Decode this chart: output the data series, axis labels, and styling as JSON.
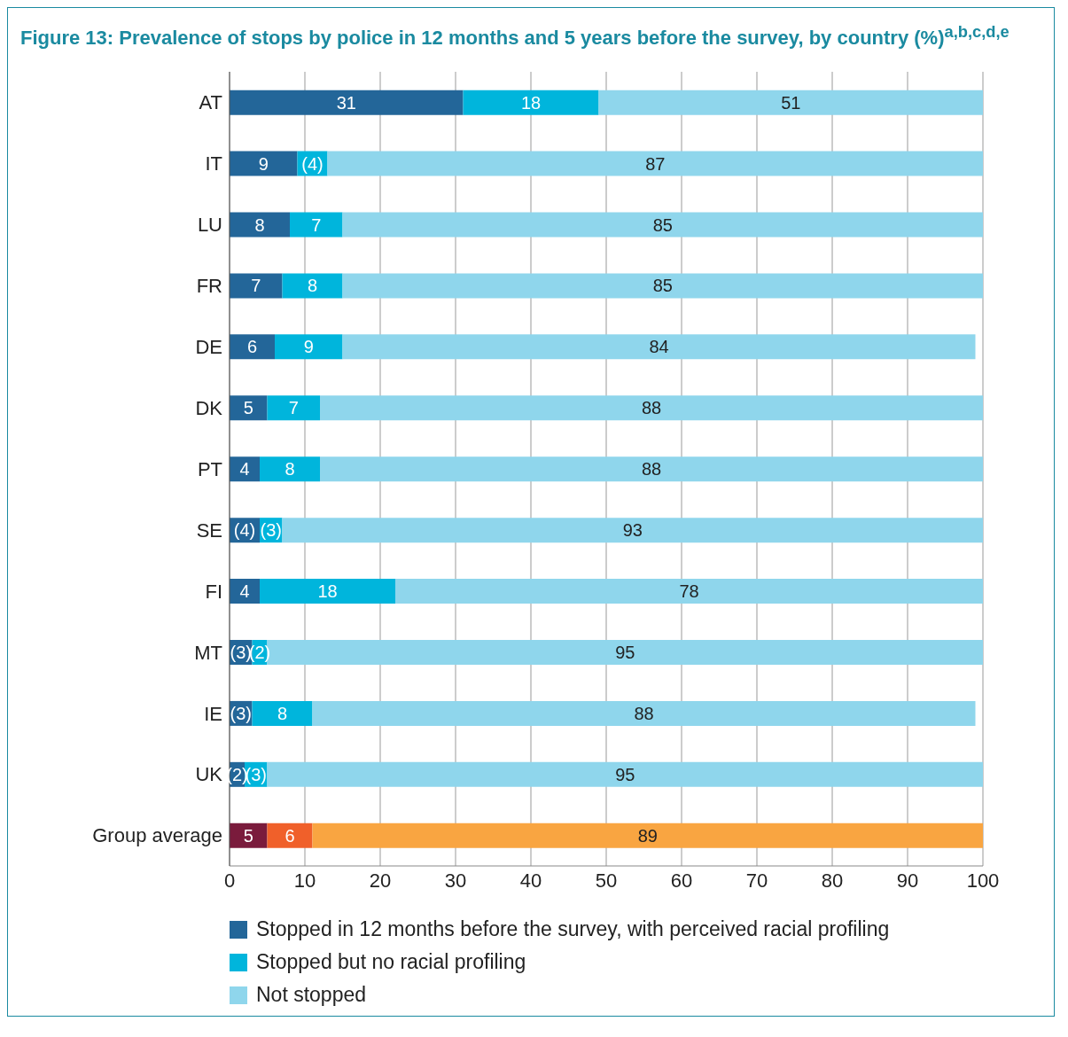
{
  "chart_data": {
    "type": "bar",
    "orientation": "horizontal",
    "stacked": true,
    "title": "Figure 13: Prevalence of stops by police in 12 months and 5 years before the survey, by country (%)$^{a,b,c,d,e}$",
    "categories": [
      "AT",
      "IT",
      "LU",
      "FR",
      "DE",
      "DK",
      "PT",
      "SE",
      "FI",
      "MT",
      "IE",
      "UK",
      "Group average"
    ],
    "series": [
      {
        "name": "Stopped in 12 months before the survey, with perceived racial profiling",
        "color": "#236699",
        "colors": [
          "#236699",
          "#236699",
          "#236699",
          "#236699",
          "#236699",
          "#236699",
          "#236699",
          "#236699",
          "#236699",
          "#236699",
          "#236699",
          "#236699",
          "#7a1b3c"
        ],
        "values": [
          31,
          9,
          8,
          7,
          6,
          5,
          4,
          4,
          4,
          3,
          3,
          2,
          5
        ],
        "value_labels": [
          "31",
          "9",
          "8",
          "7",
          "6",
          "5",
          "4",
          "(4)",
          "4",
          "(3)",
          "(3)",
          "(2)",
          "5"
        ]
      },
      {
        "name": "Stopped but no racial profiling",
        "color": "#00b5dc",
        "colors": [
          "#00b5dc",
          "#00b5dc",
          "#00b5dc",
          "#00b5dc",
          "#00b5dc",
          "#00b5dc",
          "#00b5dc",
          "#00b5dc",
          "#00b5dc",
          "#00b5dc",
          "#00b5dc",
          "#00b5dc",
          "#f0602a"
        ],
        "values": [
          18,
          4,
          7,
          8,
          9,
          7,
          8,
          3,
          18,
          2,
          8,
          3,
          6
        ],
        "value_labels": [
          "18",
          "(4)",
          "7",
          "8",
          "9",
          "7",
          "8",
          "(3)",
          "18",
          "(2)",
          "8",
          "(3)",
          "6"
        ]
      },
      {
        "name": "Not stopped",
        "color": "#8fd6ec",
        "colors": [
          "#8fd6ec",
          "#8fd6ec",
          "#8fd6ec",
          "#8fd6ec",
          "#8fd6ec",
          "#8fd6ec",
          "#8fd6ec",
          "#8fd6ec",
          "#8fd6ec",
          "#8fd6ec",
          "#8fd6ec",
          "#8fd6ec",
          "#f9a541"
        ],
        "values": [
          51,
          87,
          85,
          85,
          84,
          88,
          88,
          93,
          78,
          95,
          88,
          95,
          89
        ],
        "value_labels": [
          "51",
          "87",
          "85",
          "85",
          "84",
          "88",
          "88",
          "93",
          "78",
          "95",
          "88",
          "95",
          "89"
        ]
      }
    ],
    "xlim": [
      0,
      100
    ],
    "xticks": [
      0,
      10,
      20,
      30,
      40,
      50,
      60,
      70,
      80,
      90,
      100
    ],
    "grid": "x",
    "legend": "bottom"
  }
}
